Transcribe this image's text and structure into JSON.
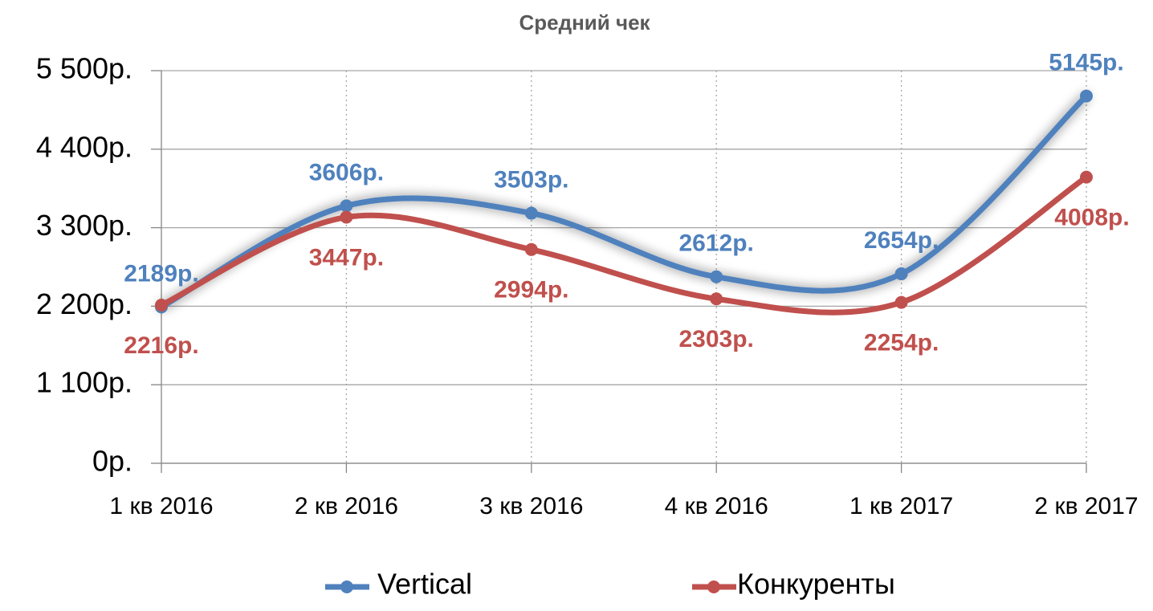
{
  "chart_data": {
    "type": "line",
    "title": "Средний чек",
    "categories": [
      "1 кв 2016",
      "2 кв 2016",
      "3 кв 2016",
      "4 кв 2016",
      "1 кв 2017",
      "2 кв 2017"
    ],
    "series": [
      {
        "name": "Vertical",
        "color": "#4f81bd",
        "values": [
          2189,
          3606,
          3503,
          2612,
          2654,
          5145
        ],
        "value_labels": [
          "2189р.",
          "3606р.",
          "3503р.",
          "2612р.",
          "2654р.",
          "5145р."
        ]
      },
      {
        "name": "Конкуренты",
        "color": "#c0504d",
        "values": [
          2216,
          3447,
          2994,
          2303,
          2254,
          4008
        ],
        "value_labels": [
          "2216р.",
          "3447р.",
          "2994р.",
          "2303р.",
          "2254р.",
          "4008р."
        ]
      }
    ],
    "ylim": [
      0,
      5500
    ],
    "yticks": [
      {
        "value": 0,
        "label": "0р."
      },
      {
        "value": 1100,
        "label": "1 100р."
      },
      {
        "value": 2200,
        "label": "2 200р."
      },
      {
        "value": 3300,
        "label": "3 300р."
      },
      {
        "value": 4400,
        "label": "4 400р."
      },
      {
        "value": 5500,
        "label": "5 500р."
      }
    ],
    "grid": true,
    "smooth": true,
    "legend": "bottom"
  }
}
